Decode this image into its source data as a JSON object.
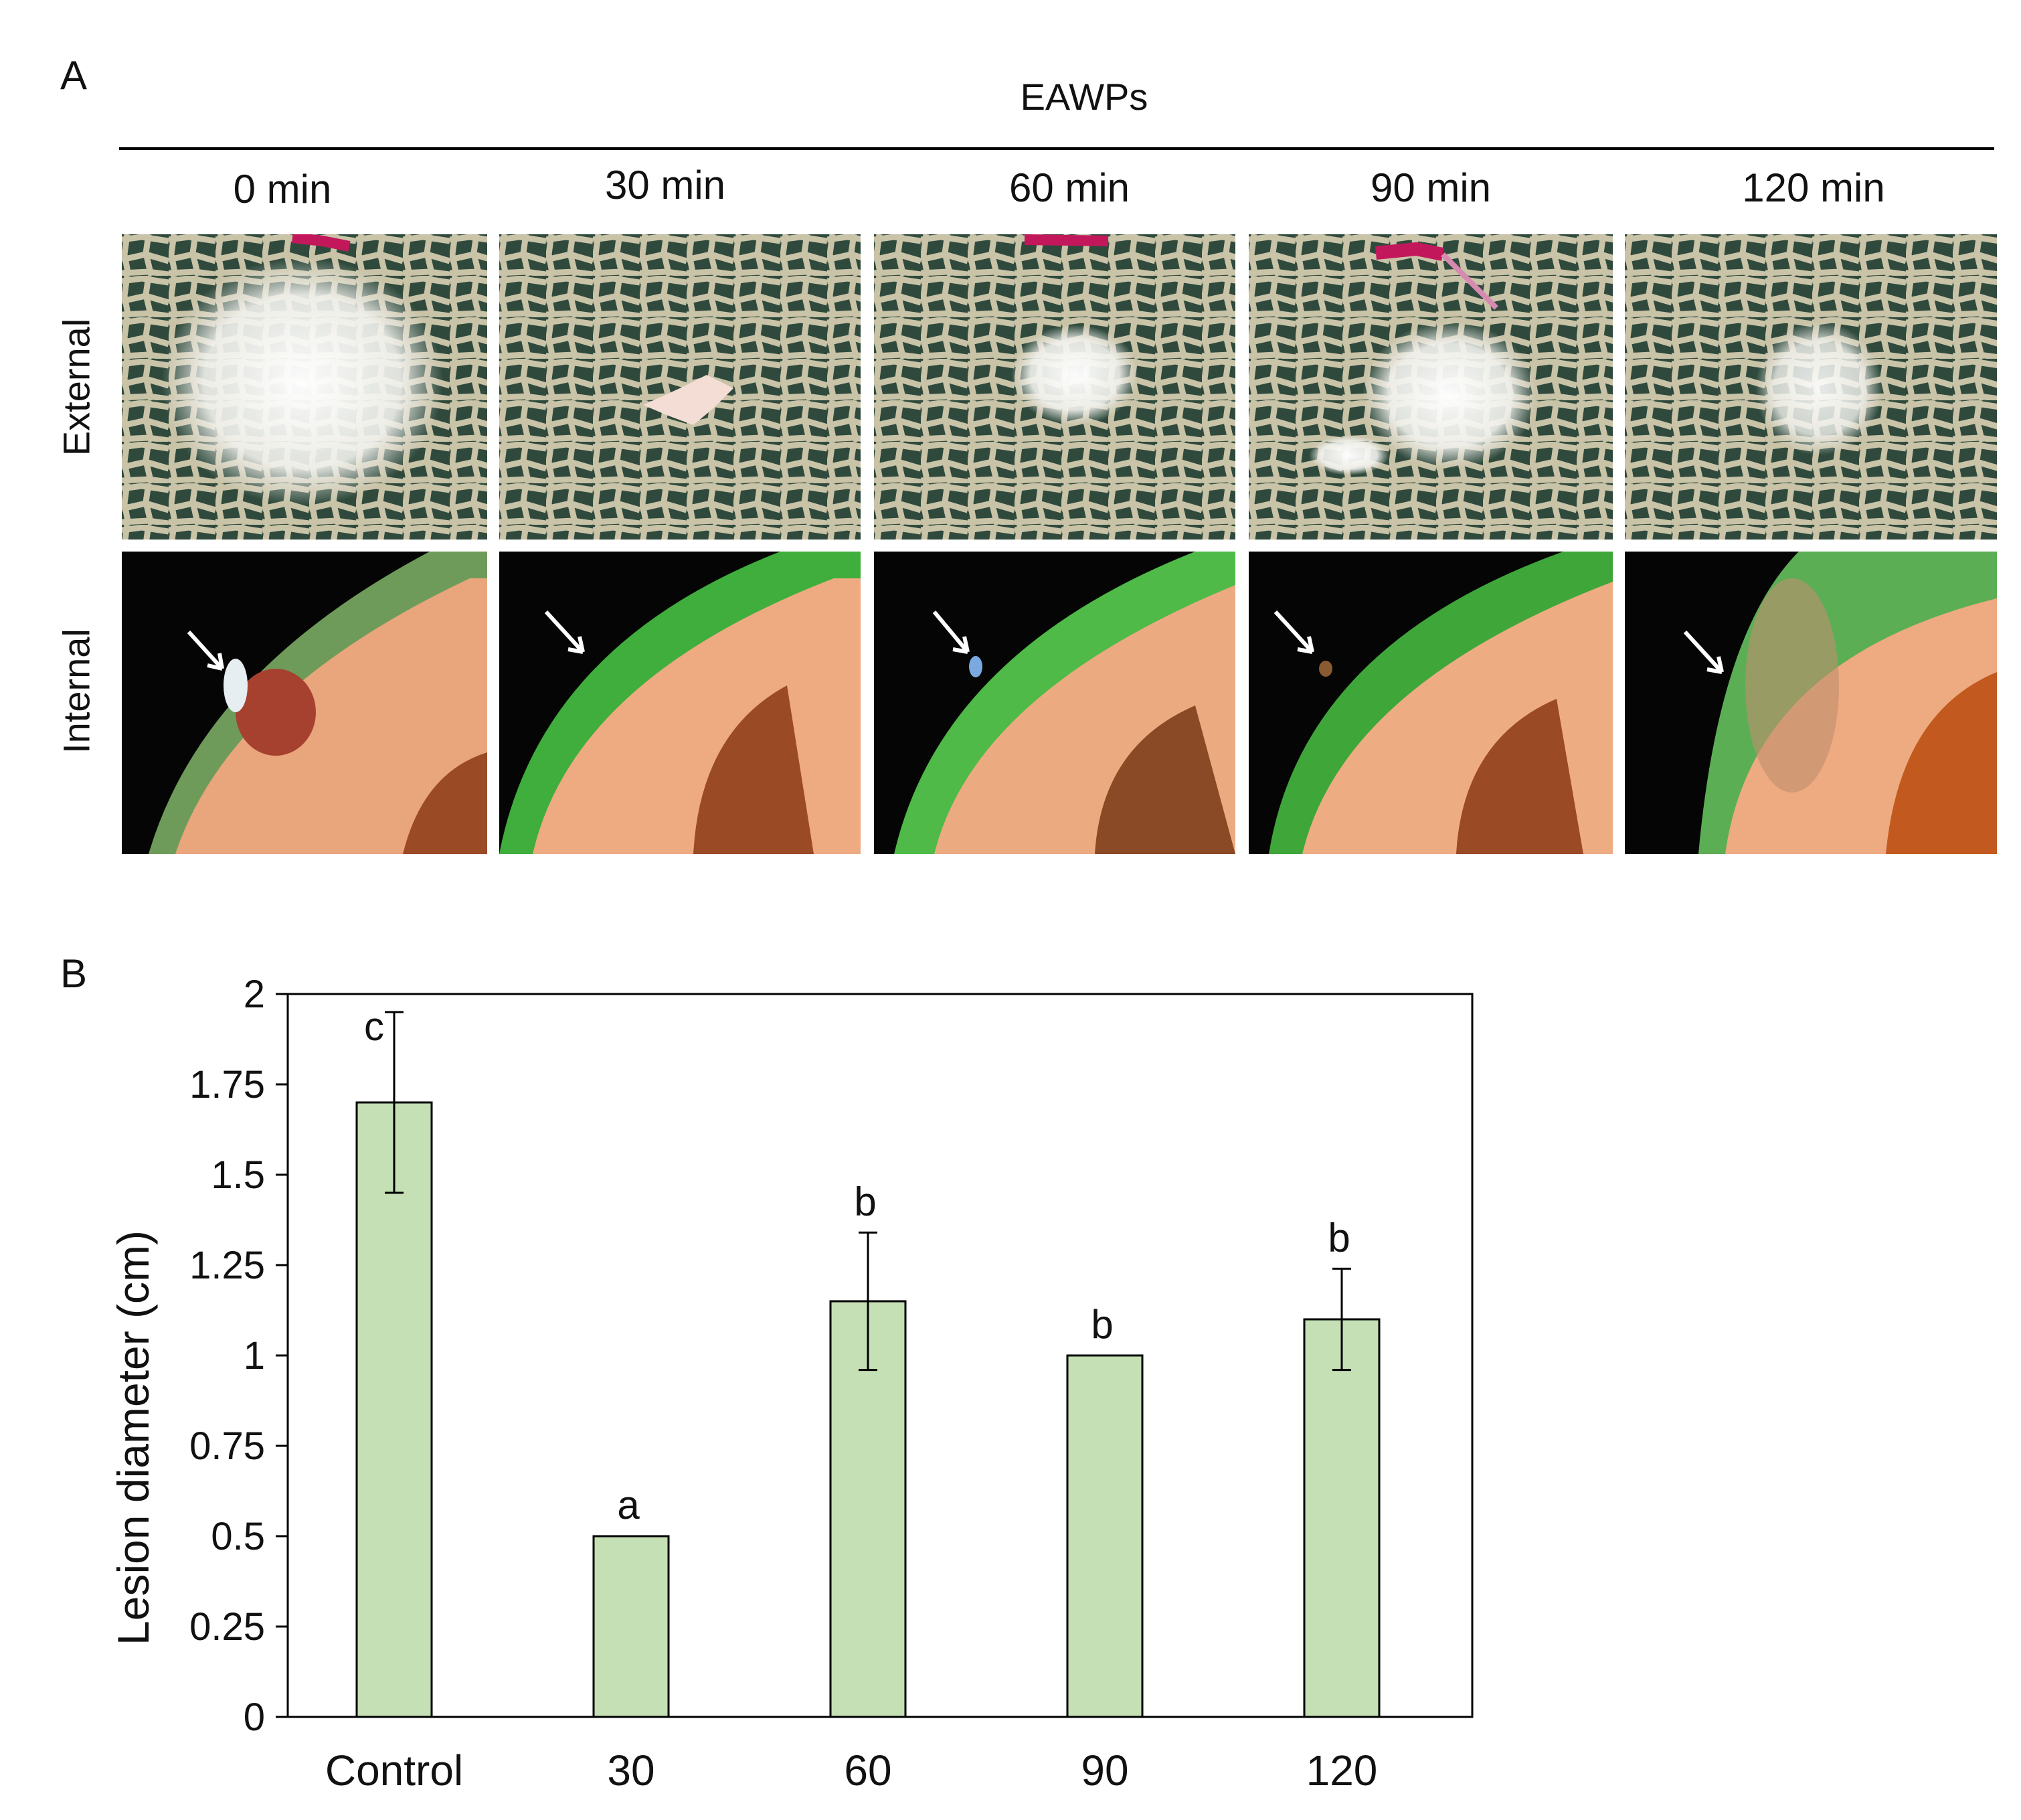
{
  "panel_a": {
    "letter": "A",
    "group_title": "EAWPs",
    "columns": [
      "0 min",
      "30 min",
      "60 min",
      "90 min",
      "120 min"
    ],
    "rows": [
      "External",
      "Internal"
    ]
  },
  "panel_b": {
    "letter": "B"
  },
  "colors": {
    "bar_fill": "#c5e0b4",
    "bar_stroke": "#000000",
    "axis": "#000000"
  },
  "chart_data": {
    "type": "bar",
    "title": "",
    "xlabel": "",
    "ylabel": "Lesion diameter (cm)",
    "categories": [
      "Control",
      "30",
      "60",
      "90",
      "120"
    ],
    "values": [
      1.7,
      0.5,
      1.15,
      1.0,
      1.1
    ],
    "errors": [
      0.25,
      0,
      0.19,
      0,
      0.14
    ],
    "significance_letters": [
      "c",
      "a",
      "b",
      "b",
      "b"
    ],
    "ylim": [
      0,
      2
    ],
    "yticks": [
      0,
      0.25,
      0.5,
      0.75,
      1,
      1.25,
      1.5,
      1.75,
      2
    ],
    "ytick_labels": [
      "0",
      "0.25",
      "0.5",
      "0.75",
      "1",
      "1.25",
      "1.5",
      "1.75",
      "2"
    ],
    "grid": false,
    "legend": "none"
  }
}
